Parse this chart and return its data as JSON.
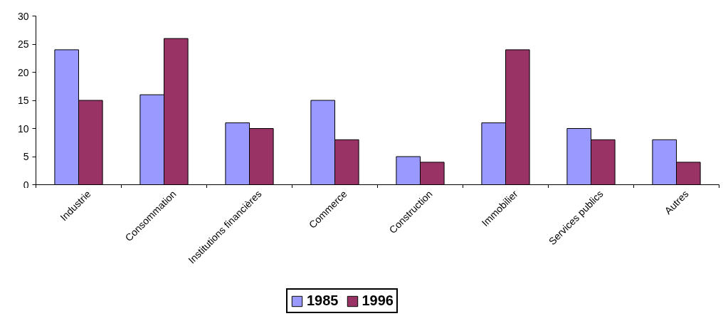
{
  "chart_data": {
    "type": "bar",
    "categories": [
      "Industrie",
      "Consommation",
      "Institutions financières",
      "Commerce",
      "Construction",
      "Immobilier",
      "Services publics",
      "Autres"
    ],
    "series": [
      {
        "name": "1985",
        "color": "#9999ff",
        "values": [
          24,
          16,
          11,
          15,
          5,
          11,
          10,
          8
        ]
      },
      {
        "name": "1996",
        "color": "#993366",
        "values": [
          15,
          26,
          10,
          8,
          4,
          24,
          8,
          4
        ]
      }
    ],
    "ylim": [
      0,
      30
    ],
    "yticks": [
      0,
      5,
      10,
      15,
      20,
      25,
      30
    ],
    "grid": false,
    "legend": "bottom"
  }
}
